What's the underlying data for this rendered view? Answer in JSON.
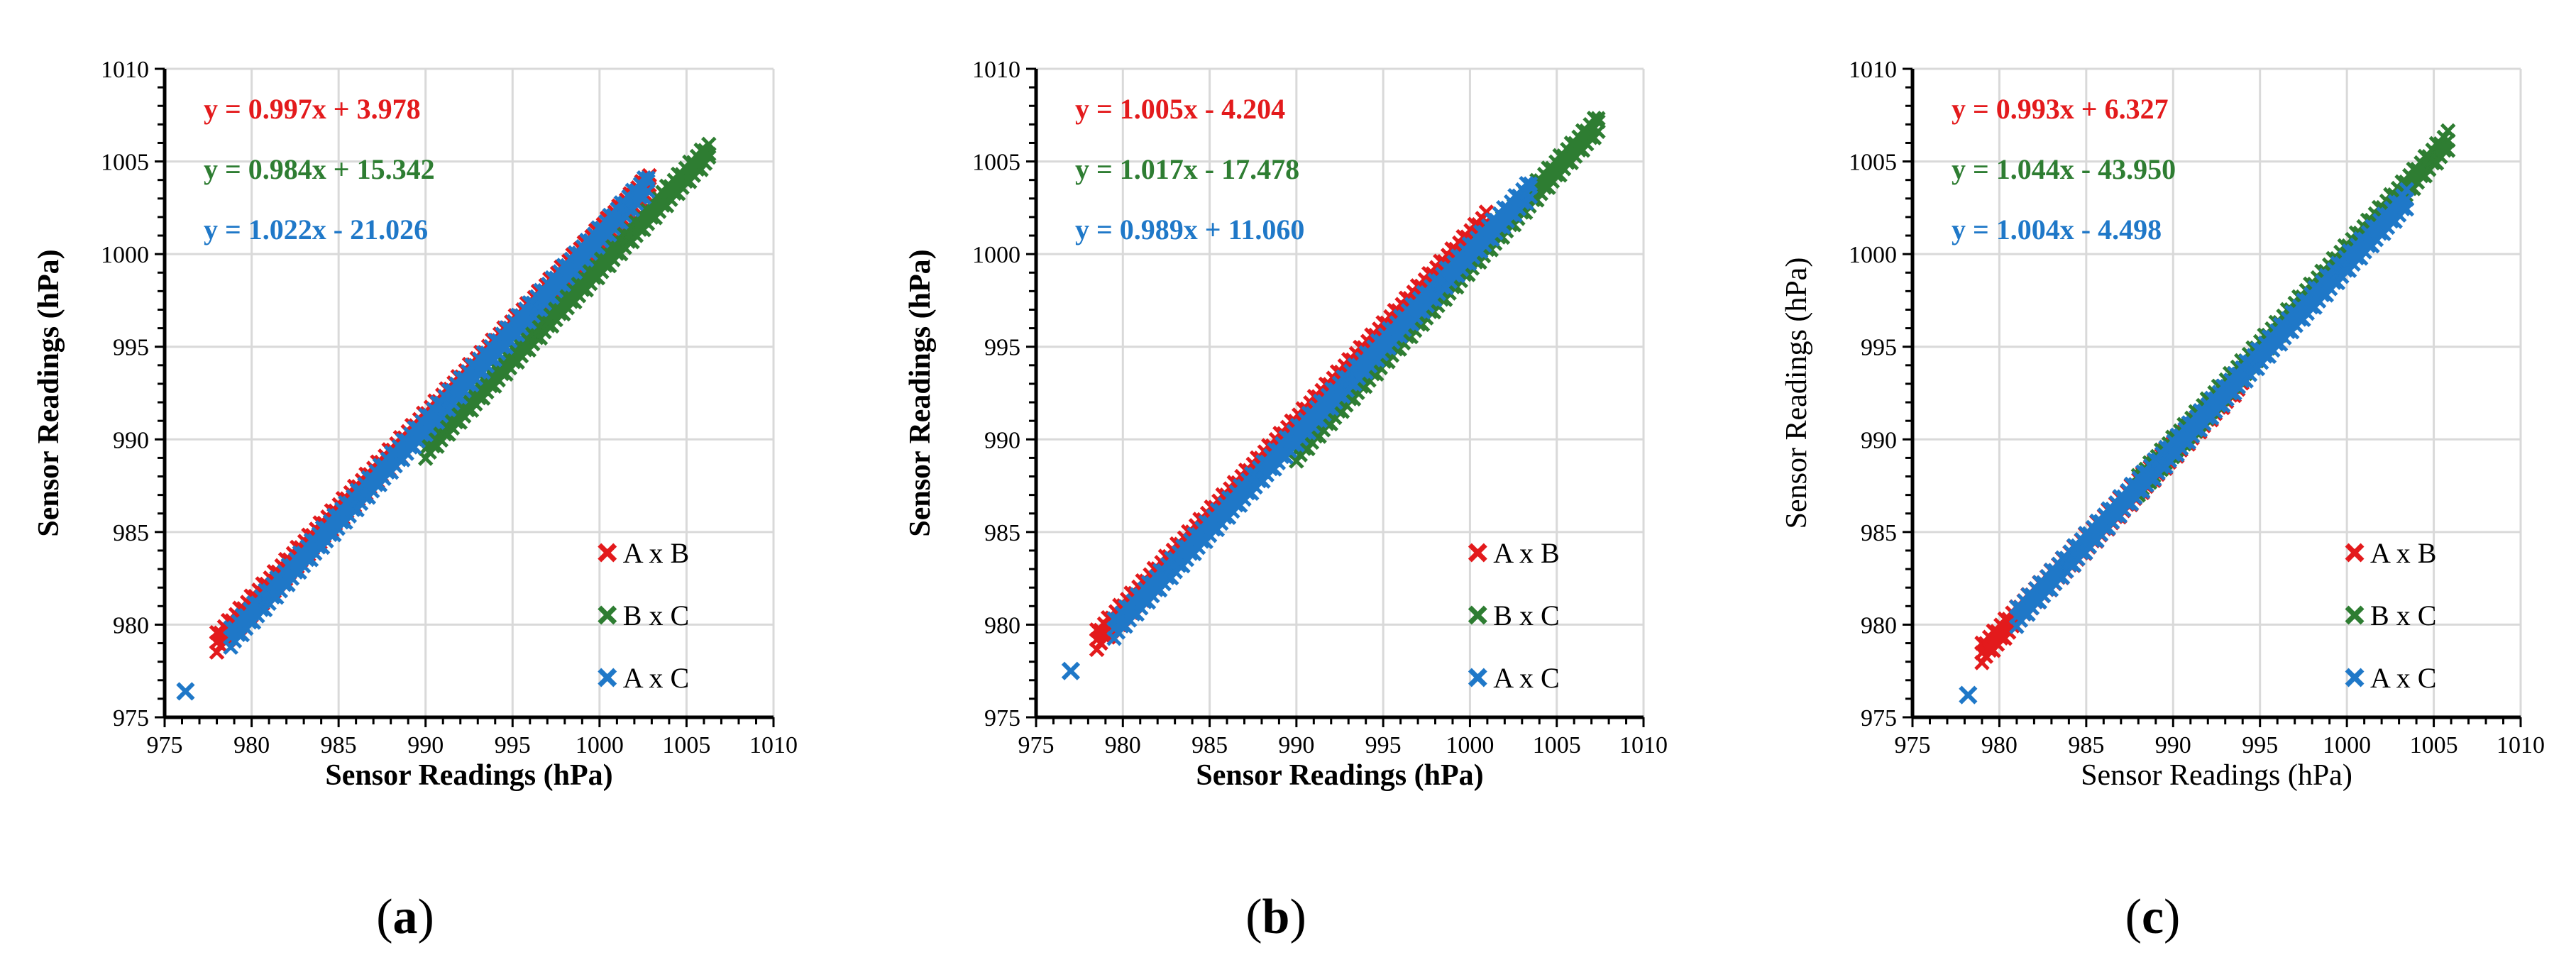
{
  "colors": {
    "A x B": "#e31a1c",
    "B x C": "#2e7d32",
    "A x C": "#1f78c8",
    "grid": "#d9d9d9",
    "axis": "#000000"
  },
  "chart_data": [
    {
      "type": "scatter",
      "panel_label": "a",
      "xlabel": "Sensor Readings (hPa)",
      "ylabel": "Sensor Readings (hPa)",
      "label_style": "bold",
      "xlim": [
        975,
        1010
      ],
      "ylim": [
        975,
        1010
      ],
      "xticks": [
        975,
        980,
        985,
        990,
        995,
        1000,
        1005,
        1010
      ],
      "yticks": [
        975,
        980,
        985,
        990,
        995,
        1000,
        1005,
        1010
      ],
      "grid": true,
      "legend_position": "bottom-right",
      "series": [
        {
          "name": "A x B",
          "equation": "y = 0.997x + 3.978",
          "slope": 0.997,
          "intercept": 3.978,
          "x_range": [
            978,
            1003
          ],
          "band": 0.9,
          "outliers": []
        },
        {
          "name": "B x C",
          "equation": "y = 0.984x + 15.342",
          "slope": 0.984,
          "intercept": 15.342,
          "x_range": [
            990,
            1006.5
          ],
          "band": 0.9,
          "outliers": []
        },
        {
          "name": "A x C",
          "equation": "y = 1.022x - 21.026",
          "slope": 1.022,
          "intercept": -21.026,
          "x_range": [
            978.8,
            1002.8
          ],
          "band": 0.9,
          "outliers": [
            [
              976.2,
              976.4
            ]
          ]
        }
      ]
    },
    {
      "type": "scatter",
      "panel_label": "b",
      "xlabel": "Sensor Readings (hPa)",
      "ylabel": "Sensor Readings (hPa)",
      "label_style": "bold",
      "xlim": [
        975,
        1010
      ],
      "ylim": [
        975,
        1010
      ],
      "xticks": [
        975,
        980,
        985,
        990,
        995,
        1000,
        1005,
        1010
      ],
      "yticks": [
        975,
        980,
        985,
        990,
        995,
        1000,
        1005,
        1010
      ],
      "grid": true,
      "legend_position": "bottom-right",
      "series": [
        {
          "name": "A x B",
          "equation": "y = 1.005x - 4.204",
          "slope": 1.005,
          "intercept": -4.204,
          "x_range": [
            978.5,
            1001
          ],
          "band": 0.9,
          "outliers": []
        },
        {
          "name": "B x C",
          "equation": "y = 1.017x - 17.478",
          "slope": 1.017,
          "intercept": -17.478,
          "x_range": [
            990,
            1007.5
          ],
          "band": 0.9,
          "outliers": []
        },
        {
          "name": "A x C",
          "equation": "y = 0.989x + 11.060",
          "slope": 0.989,
          "intercept": 11.06,
          "x_range": [
            979.5,
            1003.5
          ],
          "band": 0.9,
          "outliers": [
            [
              977,
              977.5
            ]
          ]
        }
      ]
    },
    {
      "type": "scatter",
      "panel_label": "c",
      "xlabel": "Sensor Readings (hPa)",
      "ylabel": "Sensor Readings (hPa)",
      "label_style": "normal",
      "xlim": [
        975,
        1010
      ],
      "ylim": [
        975,
        1010
      ],
      "xticks": [
        975,
        980,
        985,
        990,
        995,
        1000,
        1005,
        1010
      ],
      "yticks": [
        975,
        980,
        985,
        990,
        995,
        1000,
        1005,
        1010
      ],
      "grid": true,
      "legend_position": "bottom-right",
      "series": [
        {
          "name": "A x B",
          "equation": "y = 0.993x + 6.327",
          "slope": 0.993,
          "intercept": 6.327,
          "x_range": [
            979,
            994
          ],
          "band": 0.9,
          "outliers": []
        },
        {
          "name": "B x C",
          "equation": "y = 1.044x - 43.950",
          "slope": 1.044,
          "intercept": -43.95,
          "x_range": [
            988,
            1006
          ],
          "band": 0.9,
          "outliers": []
        },
        {
          "name": "A x C",
          "equation": "y = 1.004x - 4.498",
          "slope": 1.004,
          "intercept": -4.498,
          "x_range": [
            981,
            1003.5
          ],
          "band": 0.9,
          "outliers": [
            [
              978.2,
              976.2
            ]
          ]
        }
      ]
    }
  ]
}
